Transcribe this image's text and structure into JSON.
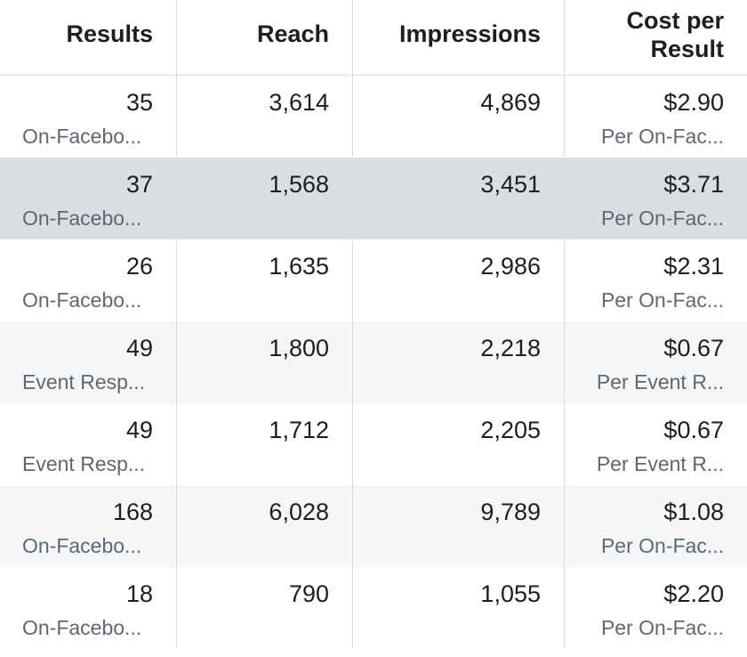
{
  "columns": {
    "results": "Results",
    "reach": "Reach",
    "impressions": "Impressions",
    "cost_line1": "Cost per",
    "cost_line2": "Result"
  },
  "rows": [
    {
      "results": "35",
      "results_type": "On-Facebo...",
      "reach": "3,614",
      "impressions": "4,869",
      "cost": "$2.90",
      "cost_type": "Per On-Fac..."
    },
    {
      "results": "37",
      "results_type": "On-Facebo...",
      "reach": "1,568",
      "impressions": "3,451",
      "cost": "$3.71",
      "cost_type": "Per On-Fac..."
    },
    {
      "results": "26",
      "results_type": "On-Facebo...",
      "reach": "1,635",
      "impressions": "2,986",
      "cost": "$2.31",
      "cost_type": "Per On-Fac..."
    },
    {
      "results": "49",
      "results_type": "Event Resp...",
      "reach": "1,800",
      "impressions": "2,218",
      "cost": "$0.67",
      "cost_type": "Per Event R..."
    },
    {
      "results": "49",
      "results_type": "Event Resp...",
      "reach": "1,712",
      "impressions": "2,205",
      "cost": "$0.67",
      "cost_type": "Per Event R..."
    },
    {
      "results": "168",
      "results_type": "On-Facebo...",
      "reach": "6,028",
      "impressions": "9,789",
      "cost": "$1.08",
      "cost_type": "Per On-Fac..."
    },
    {
      "results": "18",
      "results_type": "On-Facebo...",
      "reach": "790",
      "impressions": "1,055",
      "cost": "$2.20",
      "cost_type": "Per On-Fac..."
    }
  ]
}
